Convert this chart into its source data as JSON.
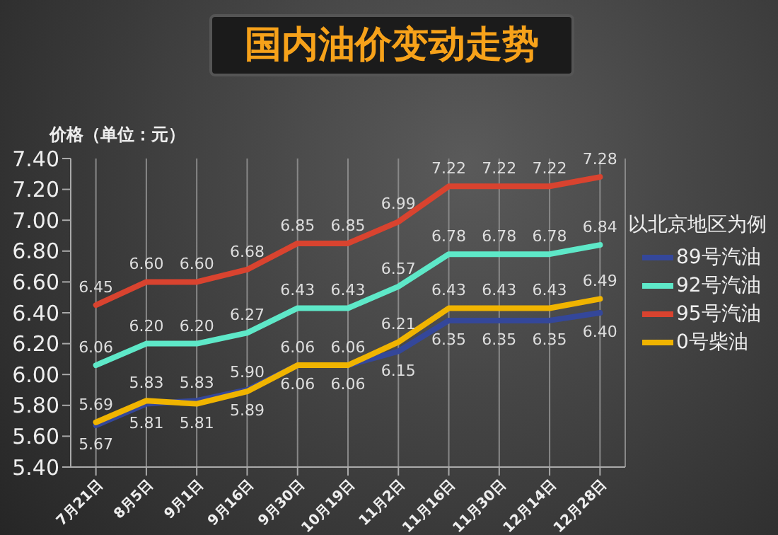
{
  "chart_data": {
    "type": "line",
    "title": "国内油价变动走势",
    "ylabel": "价格（单位：元）",
    "legend_title": "以北京地区为例",
    "categories": [
      "7月21日",
      "8月5日",
      "9月1日",
      "9月16日",
      "9月30日",
      "10月19日",
      "11月2日",
      "11月16日",
      "11月30日",
      "12月14日",
      "12月28日"
    ],
    "series": [
      {
        "name": "89号汽油",
        "color": "#34479a",
        "values": [
          5.67,
          5.81,
          5.83,
          5.9,
          6.06,
          6.06,
          6.15,
          6.35,
          6.35,
          6.35,
          6.4
        ],
        "value_labels": [
          "5.67",
          "5.81",
          "5.83",
          "5.90",
          "6.06",
          "6.06",
          "6.15",
          "6.35",
          "6.35",
          "6.35",
          "6.40"
        ]
      },
      {
        "name": "92号汽油",
        "color": "#5ee8c8",
        "values": [
          6.06,
          6.2,
          6.2,
          6.27,
          6.43,
          6.43,
          6.57,
          6.78,
          6.78,
          6.78,
          6.84
        ],
        "value_labels": [
          "6.06",
          "6.20",
          "6.20",
          "6.27",
          "6.43",
          "6.43",
          "6.57",
          "6.78",
          "6.78",
          "6.78",
          "6.84"
        ]
      },
      {
        "name": "95号汽油",
        "color": "#d9432f",
        "values": [
          6.45,
          6.6,
          6.6,
          6.68,
          6.85,
          6.85,
          6.99,
          7.22,
          7.22,
          7.22,
          7.28
        ],
        "value_labels": [
          "6.45",
          "6.60",
          "6.60",
          "6.68",
          "6.85",
          "6.85",
          "6.99",
          "7.22",
          "7.22",
          "7.22",
          "7.28"
        ]
      },
      {
        "name": "0号柴油",
        "color": "#f0b400",
        "values": [
          5.69,
          5.83,
          5.81,
          5.89,
          6.06,
          6.06,
          6.21,
          6.43,
          6.43,
          6.43,
          6.49
        ],
        "value_labels": [
          "5.69",
          "5.83",
          "5.81",
          "5.89",
          "6.06",
          "6.06",
          "6.21",
          "6.43",
          "6.43",
          "6.43",
          "6.49"
        ]
      }
    ],
    "ylim": [
      5.4,
      7.4
    ],
    "yticks": [
      {
        "value": 5.4,
        "label": "5.40"
      },
      {
        "value": 5.6,
        "label": "5.60"
      },
      {
        "value": 5.8,
        "label": "5.80"
      },
      {
        "value": 6.0,
        "label": "6.00"
      },
      {
        "value": 6.2,
        "label": "6.20"
      },
      {
        "value": 6.4,
        "label": "6.40"
      },
      {
        "value": 6.6,
        "label": "6.60"
      },
      {
        "value": 6.8,
        "label": "6.80"
      },
      {
        "value": 7.0,
        "label": "7.00"
      },
      {
        "value": 7.2,
        "label": "7.20"
      },
      {
        "value": 7.4,
        "label": "7.40"
      }
    ],
    "grid": "x",
    "legend": "right",
    "marker": "none",
    "line_style": "solid"
  }
}
